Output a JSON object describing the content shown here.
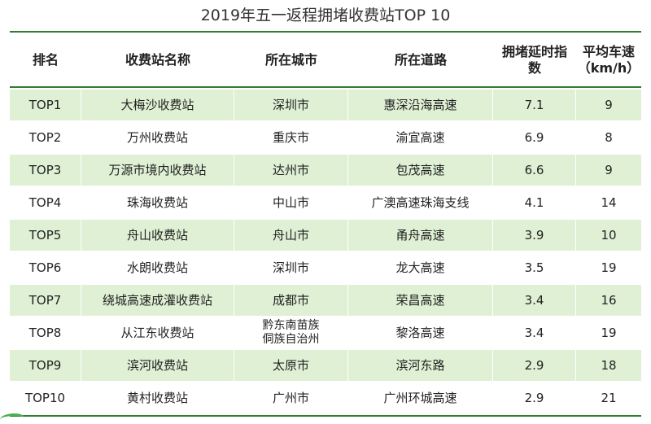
{
  "title": "2019年五一返程拥堵收费站TOP 10",
  "headers": {
    "rank": "排名",
    "station": "收费站名称",
    "city": "所在城市",
    "road": "所在道路",
    "delay_line1": "拥堵延时指",
    "delay_line2": "数",
    "speed_line1": "平均车速",
    "speed_line2": "（km/h）"
  },
  "rows": [
    {
      "rank": "TOP1",
      "station": "大梅沙收费站",
      "city": "深圳市",
      "city2": "",
      "road": "惠深沿海高速",
      "delay": "7.1",
      "speed": "9"
    },
    {
      "rank": "TOP2",
      "station": "万州收费站",
      "city": "重庆市",
      "city2": "",
      "road": "渝宜高速",
      "delay": "6.9",
      "speed": "8"
    },
    {
      "rank": "TOP3",
      "station": "万源市境内收费站",
      "city": "达州市",
      "city2": "",
      "road": "包茂高速",
      "delay": "6.6",
      "speed": "9"
    },
    {
      "rank": "TOP4",
      "station": "珠海收费站",
      "city": "中山市",
      "city2": "",
      "road": "广澳高速珠海支线",
      "delay": "4.1",
      "speed": "14"
    },
    {
      "rank": "TOP5",
      "station": "舟山收费站",
      "city": "舟山市",
      "city2": "",
      "road": "甬舟高速",
      "delay": "3.9",
      "speed": "10"
    },
    {
      "rank": "TOP6",
      "station": "水朗收费站",
      "city": "深圳市",
      "city2": "",
      "road": "龙大高速",
      "delay": "3.5",
      "speed": "19"
    },
    {
      "rank": "TOP7",
      "station": "绕城高速成灌收费站",
      "city": "成都市",
      "city2": "",
      "road": "荣昌高速",
      "delay": "3.4",
      "speed": "16"
    },
    {
      "rank": "TOP8",
      "station": "从江东收费站",
      "city": "黔东南苗族",
      "city2": "侗族自治州",
      "road": "黎洛高速",
      "delay": "3.4",
      "speed": "19"
    },
    {
      "rank": "TOP9",
      "station": "滨河收费站",
      "city": "太原市",
      "city2": "",
      "road": "滨河东路",
      "delay": "2.9",
      "speed": "18"
    },
    {
      "rank": "TOP10",
      "station": "黄村收费站",
      "city": "广州市",
      "city2": "",
      "road": "广州环城高速",
      "delay": "2.9",
      "speed": "21"
    }
  ],
  "colors": {
    "band": "#dff0d4",
    "rule": "#2e7d32"
  }
}
